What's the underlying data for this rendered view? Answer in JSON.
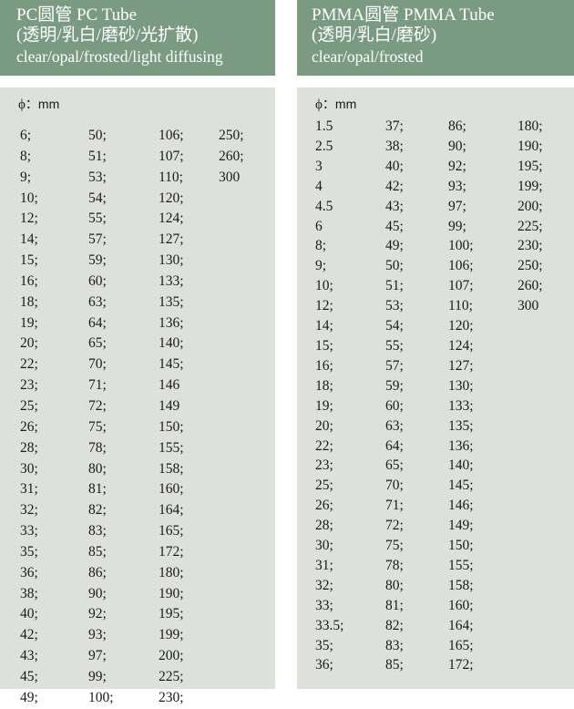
{
  "pc": {
    "title": "PC圆管 PC Tube",
    "subtitle": "(透明/乳白/磨砂/光扩散)",
    "types": "clear/opal/frosted/light diffusing",
    "unit_symbol": "ϕ",
    "unit_label": "：mm",
    "columns": [
      [
        "6;",
        "8;",
        "9;",
        "10;",
        "12;",
        "14;",
        "15;",
        "16;",
        "18;",
        "19;",
        "20;",
        "22;",
        "23;",
        "25;",
        "26;",
        "28;",
        "30;",
        "31;",
        "32;",
        "33;",
        "35;",
        "36;",
        "38;",
        "40;",
        "42;",
        "43;",
        "45;",
        "49;"
      ],
      [
        "50;",
        "51;",
        "53;",
        "54;",
        "55;",
        "57;",
        "59;",
        "60;",
        "63;",
        "64;",
        "65;",
        "70;",
        "71;",
        "72;",
        "75;",
        "78;",
        "80;",
        "81;",
        "82;",
        "83;",
        "85;",
        "86;",
        "90;",
        "92;",
        "93;",
        "97;",
        "99;",
        "100;"
      ],
      [
        "106;",
        "107;",
        "110;",
        "120;",
        "124;",
        "127;",
        "130;",
        "133;",
        "135;",
        "136;",
        "140;",
        "145;",
        "146",
        "149",
        "150;",
        "155;",
        "158;",
        "160;",
        "164;",
        "165;",
        "172;",
        "180;",
        "190;",
        "195;",
        "199;",
        "200;",
        "225;",
        "230;"
      ],
      [
        "250;",
        "260;",
        "300"
      ]
    ]
  },
  "pmma": {
    "title": "PMMA圆管 PMMA Tube",
    "subtitle": "(透明/乳白/磨砂)",
    "types": "clear/opal/frosted",
    "unit_symbol": "ϕ",
    "unit_label": "：mm",
    "columns": [
      [
        "1.5",
        "2.5",
        "3",
        "4",
        "4.5",
        "6",
        "8;",
        "9;",
        "10;",
        "12;",
        "14;",
        "15;",
        "16;",
        "18;",
        "19;",
        "20;",
        "22;",
        "23;",
        "25;",
        "26;",
        "28;",
        "30;",
        "31;",
        "32;",
        "33;",
        "33.5;",
        "35;",
        "36;"
      ],
      [
        "37;",
        "38;",
        "40;",
        "42;",
        "43;",
        "45;",
        "49;",
        "50;",
        "51;",
        "53;",
        "54;",
        "55;",
        "57;",
        "59;",
        "60;",
        "63;",
        "64;",
        "65;",
        "70;",
        "71;",
        "72;",
        "75;",
        "78;",
        "80;",
        "81;",
        "82;",
        "83;",
        "85;"
      ],
      [
        "86;",
        "90;",
        "92;",
        "93;",
        "97;",
        "99;",
        "100;",
        "106;",
        "107;",
        "110;",
        "120;",
        "124;",
        "127;",
        "130;",
        "133;",
        "135;",
        "136;",
        "140;",
        "145;",
        "146;",
        "149;",
        "150;",
        "155;",
        "158;",
        "160;",
        "164;",
        "165;",
        "172;"
      ],
      [
        "180;",
        "190;",
        "195;",
        "199;",
        "200;",
        "225;",
        "230;",
        "250;",
        "260;",
        "300"
      ]
    ]
  },
  "colors": {
    "header_bg": "#7a9a82",
    "body_bg": "#dee1db"
  }
}
